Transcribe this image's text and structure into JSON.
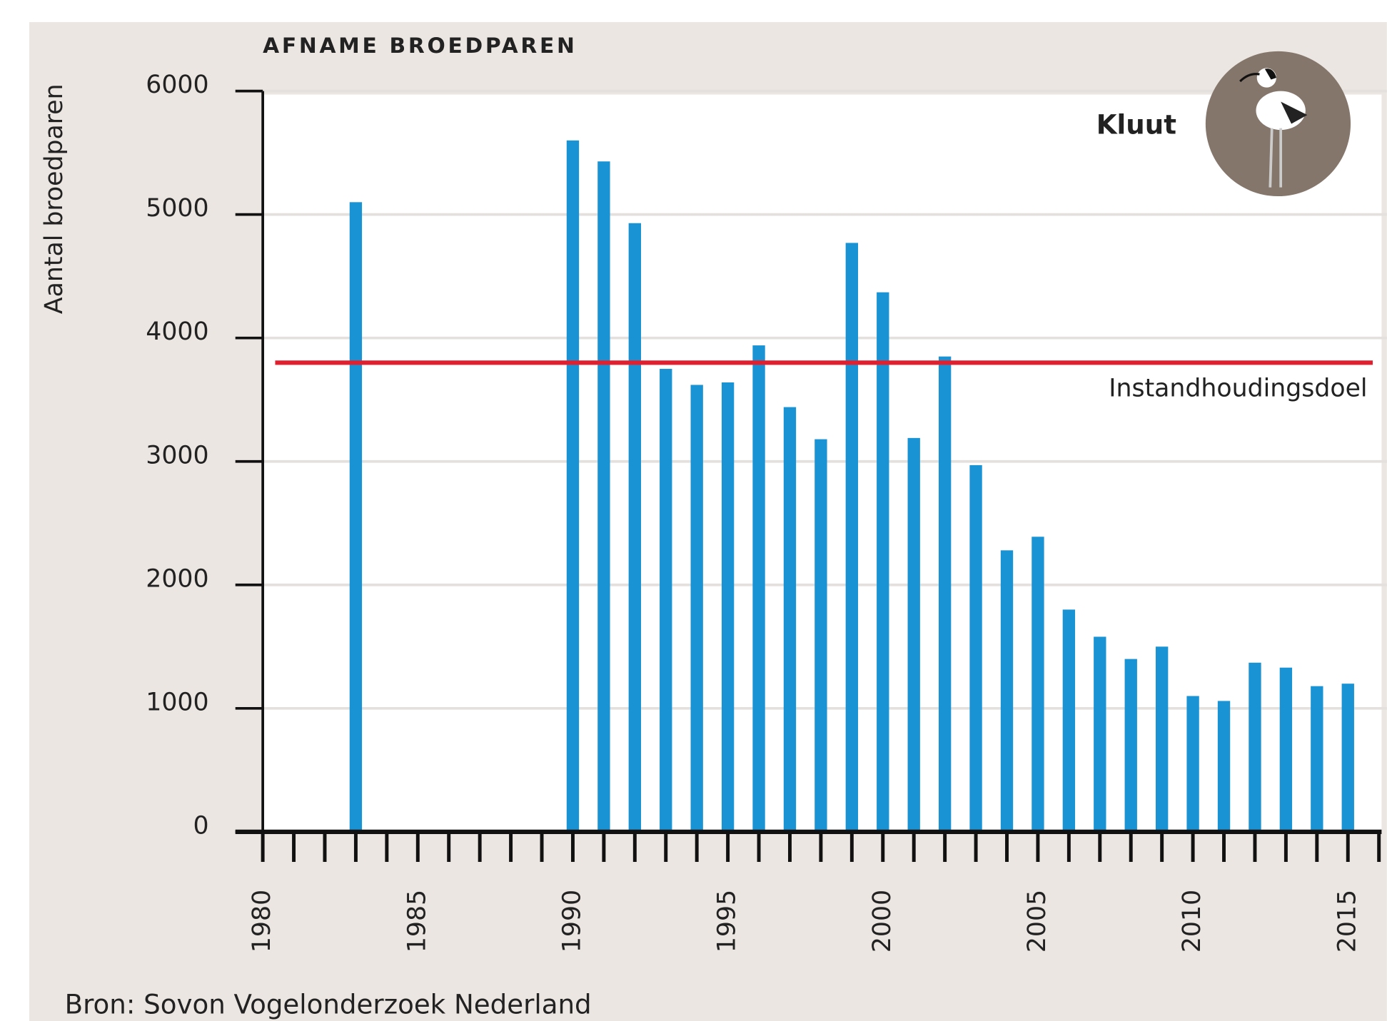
{
  "chart_data": {
    "type": "bar",
    "title": "AFNAME BROEDPAREN",
    "y_label": "Aantal broedparen",
    "annotation": "Kluut",
    "source": "Bron: Sovon Vogelonderzoek Nederland",
    "x": [
      1983,
      1990,
      1991,
      1992,
      1993,
      1994,
      1995,
      1996,
      1997,
      1998,
      1999,
      2000,
      2001,
      2002,
      2003,
      2004,
      2005,
      2006,
      2007,
      2008,
      2009,
      2010,
      2011,
      2012,
      2013,
      2014,
      2015
    ],
    "values": [
      5100,
      5600,
      5430,
      4930,
      3750,
      3620,
      3640,
      3940,
      3440,
      3180,
      4770,
      4370,
      3190,
      3850,
      2970,
      2280,
      2390,
      1800,
      1580,
      1400,
      1500,
      1100,
      1060,
      1370,
      1330,
      1180,
      1200
    ],
    "color": "#1a93d4",
    "xlim": [
      1980,
      2016
    ],
    "xticks": [
      1980,
      1985,
      1990,
      1995,
      2000,
      2005,
      2010,
      2015
    ],
    "xminorticks": [
      1980,
      1981,
      1982,
      1983,
      1984,
      1985,
      1986,
      1987,
      1988,
      1989,
      1990,
      1991,
      1992,
      1993,
      1994,
      1995,
      1996,
      1997,
      1998,
      1999,
      2000,
      2001,
      2002,
      2003,
      2004,
      2005,
      2006,
      2007,
      2008,
      2009,
      2010,
      2011,
      2012,
      2013,
      2014,
      2015,
      2016
    ],
    "ylim": [
      0,
      6000
    ],
    "yticks": [
      0,
      1000,
      2000,
      3000,
      4000,
      5000,
      6000
    ],
    "grid": true,
    "reference_line": {
      "value": 3800,
      "label": "Instandhoudingsdoel",
      "color": "#e0202f"
    }
  }
}
